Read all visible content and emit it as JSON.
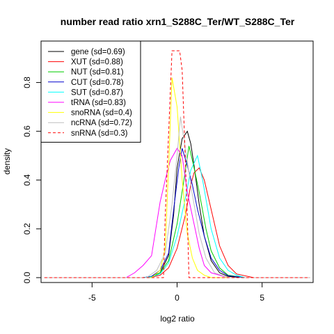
{
  "chart_data": {
    "type": "line",
    "title": "number read ratio xrn1_S288C_Ter/WT_S288C_Ter",
    "xlabel": "log2 ratio",
    "ylabel": "density",
    "xlim": [
      -8.0,
      8.0
    ],
    "ylim": [
      -0.02,
      0.97
    ],
    "x_ticks": [
      -5,
      0,
      5
    ],
    "y_ticks": [
      0.0,
      0.2,
      0.4,
      0.6,
      0.8
    ],
    "grid": false,
    "legend_position": "top-left",
    "series": [
      {
        "name": "gene (sd=0.69)",
        "color": "#000000",
        "dash": false,
        "x": [
          -7.8,
          -2.0,
          -1.5,
          -1.0,
          -0.5,
          -0.2,
          0.0,
          0.3,
          0.6,
          0.8,
          1.0,
          1.3,
          1.6,
          2.0,
          2.5,
          3.0,
          4.0,
          7.8
        ],
        "y": [
          0.0,
          0.0,
          0.005,
          0.02,
          0.09,
          0.26,
          0.45,
          0.57,
          0.6,
          0.55,
          0.46,
          0.3,
          0.17,
          0.07,
          0.02,
          0.005,
          0.0,
          0.0
        ]
      },
      {
        "name": "XUT (sd=0.88)",
        "color": "#ff0000",
        "dash": false,
        "x": [
          -7.8,
          -2.0,
          -1.5,
          -1.0,
          -0.5,
          0.0,
          0.5,
          0.8,
          1.0,
          1.3,
          1.6,
          2.0,
          2.5,
          3.0,
          3.5,
          4.5,
          7.8
        ],
        "y": [
          0.0,
          0.0,
          0.002,
          0.01,
          0.04,
          0.12,
          0.26,
          0.38,
          0.43,
          0.45,
          0.4,
          0.28,
          0.13,
          0.05,
          0.015,
          0.0,
          0.0
        ]
      },
      {
        "name": "NUT (sd=0.81)",
        "color": "#00cd00",
        "dash": false,
        "x": [
          -7.8,
          -2.0,
          -1.5,
          -1.0,
          -0.5,
          0.0,
          0.4,
          0.7,
          1.0,
          1.3,
          1.7,
          2.0,
          2.5,
          3.0,
          4.0,
          7.8
        ],
        "y": [
          0.0,
          0.0,
          0.003,
          0.02,
          0.07,
          0.22,
          0.4,
          0.54,
          0.45,
          0.35,
          0.2,
          0.11,
          0.04,
          0.01,
          0.0,
          0.0
        ]
      },
      {
        "name": "CUT (sd=0.78)",
        "color": "#0000cd",
        "dash": false,
        "x": [
          -7.8,
          -2.0,
          -1.5,
          -1.0,
          -0.5,
          -0.2,
          0.1,
          0.3,
          0.6,
          0.9,
          1.2,
          1.6,
          2.0,
          2.5,
          3.0,
          4.0,
          7.8
        ],
        "y": [
          0.0,
          0.0,
          0.005,
          0.03,
          0.1,
          0.28,
          0.45,
          0.53,
          0.46,
          0.38,
          0.28,
          0.17,
          0.08,
          0.03,
          0.008,
          0.0,
          0.0
        ]
      },
      {
        "name": "SUT (sd=0.87)",
        "color": "#00ffff",
        "dash": false,
        "x": [
          -7.8,
          -2.0,
          -1.5,
          -1.0,
          -0.5,
          0.0,
          0.5,
          0.8,
          1.0,
          1.2,
          1.5,
          2.0,
          2.5,
          3.0,
          3.5,
          4.0,
          7.8
        ],
        "y": [
          0.0,
          0.0,
          0.003,
          0.015,
          0.06,
          0.17,
          0.33,
          0.44,
          0.47,
          0.5,
          0.4,
          0.2,
          0.08,
          0.03,
          0.01,
          0.0,
          0.0
        ]
      },
      {
        "name": "tRNA (sd=0.83)",
        "color": "#ff00ff",
        "dash": false,
        "x": [
          -7.8,
          -3.0,
          -2.5,
          -2.0,
          -1.5,
          -1.0,
          -0.7,
          -0.4,
          0.0,
          0.3,
          0.6,
          1.0,
          1.3,
          1.6,
          2.0,
          3.0,
          7.8
        ],
        "y": [
          0.0,
          0.0,
          0.02,
          0.05,
          0.09,
          0.31,
          0.4,
          0.48,
          0.53,
          0.5,
          0.35,
          0.22,
          0.12,
          0.05,
          0.02,
          0.0,
          0.0
        ]
      },
      {
        "name": "snoRNA (sd=0.4)",
        "color": "#ffff00",
        "dash": false,
        "x": [
          -7.8,
          -1.5,
          -1.0,
          -0.7,
          -0.5,
          -0.3,
          0.0,
          0.3,
          0.6,
          0.9,
          1.2,
          1.6,
          2.0,
          7.8
        ],
        "y": [
          0.0,
          0.0,
          0.03,
          0.12,
          0.45,
          0.82,
          0.7,
          0.4,
          0.18,
          0.08,
          0.03,
          0.01,
          0.0,
          0.0
        ]
      },
      {
        "name": "ncRNA (sd=0.72)",
        "color": "#bebebe",
        "dash": false,
        "x": [
          -7.8,
          -1.8,
          -1.2,
          -0.7,
          -0.3,
          0.0,
          0.2,
          0.5,
          0.9,
          1.3,
          1.7,
          2.2,
          3.0,
          7.8
        ],
        "y": [
          0.0,
          0.0,
          0.03,
          0.1,
          0.3,
          0.5,
          0.66,
          0.52,
          0.34,
          0.18,
          0.08,
          0.02,
          0.0,
          0.0
        ]
      },
      {
        "name": "snRNA (sd=0.3)",
        "color": "#ff0000",
        "dash": true,
        "x": [
          -7.8,
          -0.8,
          -0.7,
          -0.3,
          0.15,
          0.3,
          0.6,
          0.7,
          7.8
        ],
        "y": [
          0.0,
          0.0,
          0.25,
          0.93,
          0.93,
          0.85,
          0.25,
          0.0,
          0.0
        ]
      }
    ]
  }
}
